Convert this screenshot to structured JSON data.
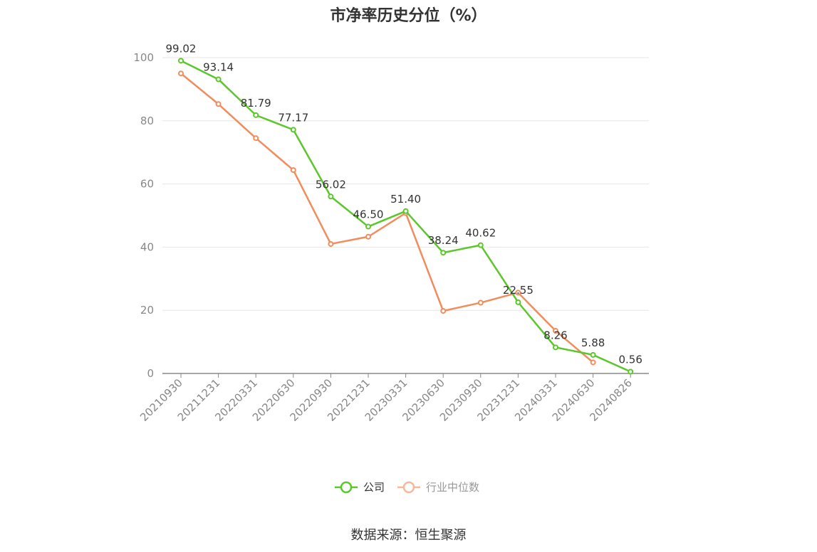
{
  "chart_data": {
    "type": "line",
    "title": "市净率历史分位（%）",
    "source": "数据来源：恒生聚源",
    "categories": [
      "20210930",
      "20211231",
      "20220331",
      "20220630",
      "20220930",
      "20221231",
      "20230331",
      "20230630",
      "20230930",
      "20231231",
      "20240331",
      "20240630",
      "20240826"
    ],
    "ylim": [
      0,
      100
    ],
    "yticks": [
      0,
      20,
      40,
      60,
      80,
      100
    ],
    "grid": true,
    "legend_position": "bottom-center",
    "series": [
      {
        "name": "公司",
        "color": "#5cc72a",
        "values": [
          99.02,
          93.14,
          81.79,
          77.17,
          56.02,
          46.5,
          51.4,
          38.24,
          40.62,
          22.55,
          8.26,
          5.88,
          0.56
        ],
        "labels": [
          "99.02",
          "93.14",
          "81.79",
          "77.17",
          "56.02",
          "46.50",
          "51.40",
          "38.24",
          "40.62",
          "22.55",
          "8.26",
          "5.88",
          "0.56"
        ]
      },
      {
        "name": "行业中位数",
        "color": "#f28c5c",
        "legend_color": "#f7b89a",
        "values": [
          95.0,
          85.3,
          74.5,
          64.4,
          41.0,
          43.3,
          50.8,
          19.8,
          22.4,
          25.6,
          13.5,
          3.5,
          null
        ]
      }
    ]
  }
}
